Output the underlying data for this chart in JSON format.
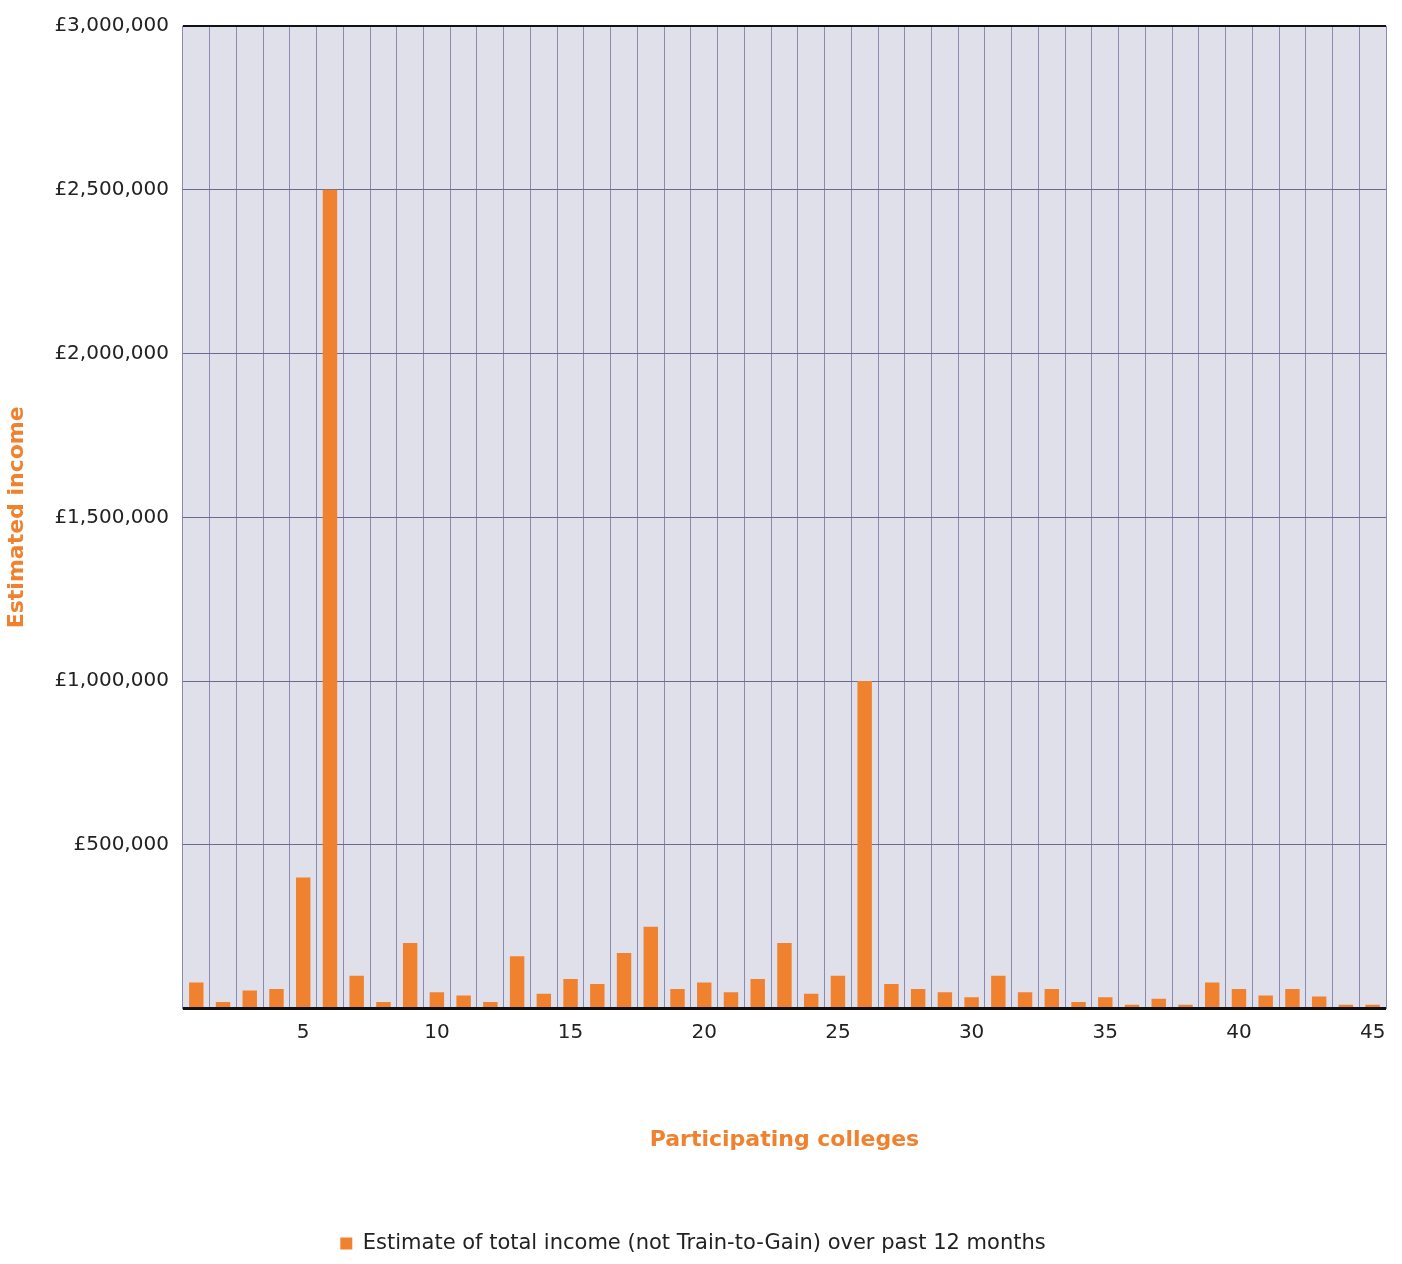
{
  "chart_data": {
    "type": "bar",
    "xlabel": "Participating colleges",
    "ylabel": "Estimated income",
    "categories": [
      null,
      null,
      null,
      null,
      "5",
      null,
      null,
      null,
      null,
      "10",
      null,
      null,
      null,
      null,
      "15",
      null,
      null,
      null,
      null,
      "20",
      null,
      null,
      null,
      null,
      "25",
      null,
      null,
      null,
      null,
      "30",
      null,
      null,
      null,
      null,
      "35",
      null,
      null,
      null,
      null,
      "40",
      null,
      null,
      null,
      null,
      "45"
    ],
    "series": [
      {
        "name": "Estimate of total income (not Train-to-Gain) over past 12 months",
        "color": "#f0822f",
        "values": [
          80000,
          20000,
          55000,
          60000,
          400000,
          2500000,
          100000,
          20000,
          200000,
          50000,
          40000,
          20000,
          160000,
          45000,
          90000,
          75000,
          170000,
          250000,
          60000,
          80000,
          50000,
          90000,
          200000,
          45000,
          100000,
          1000000,
          75000,
          60000,
          50000,
          35000,
          100000,
          50000,
          60000,
          20000,
          35000,
          12000,
          30000,
          12000,
          80000,
          60000,
          40000,
          60000,
          37000,
          12000,
          12000
        ]
      }
    ],
    "ylim": [
      0,
      3000000
    ],
    "yticks": [
      {
        "value": 0,
        "label": null
      },
      {
        "value": 500000,
        "label": "£500,000"
      },
      {
        "value": 1000000,
        "label": "£1,000,000"
      },
      {
        "value": 1500000,
        "label": "£1,500,000"
      },
      {
        "value": 2000000,
        "label": "£2,000,000"
      },
      {
        "value": 2500000,
        "label": "£2,500,000"
      },
      {
        "value": 3000000,
        "label": "£3,000,000"
      }
    ],
    "grid": true,
    "legend": "bottom"
  }
}
